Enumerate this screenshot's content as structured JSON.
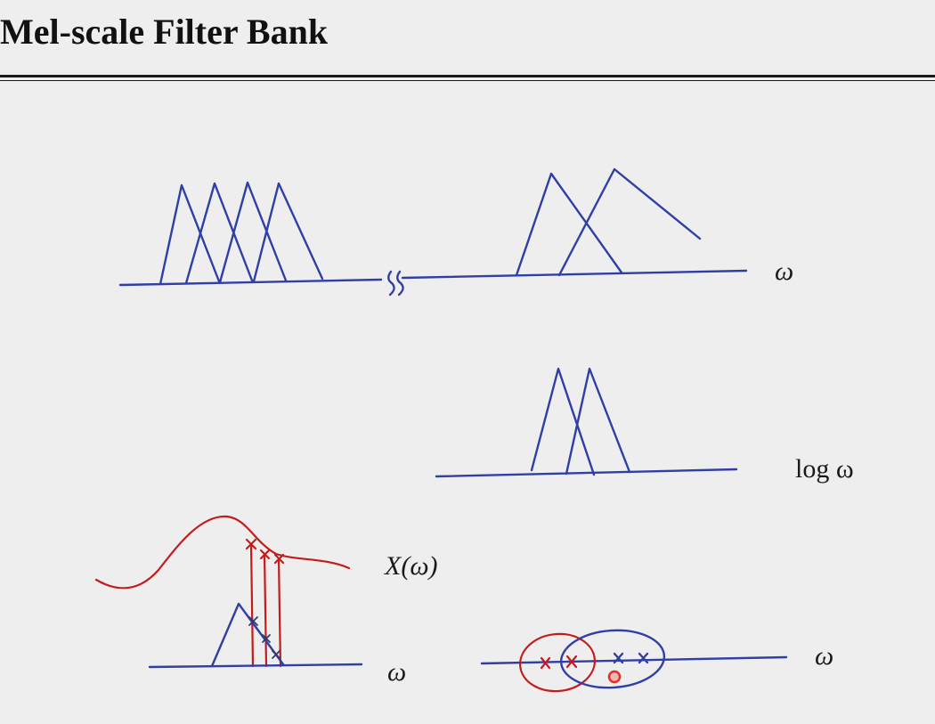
{
  "slide": {
    "title": "Mel-scale Filter Bank"
  },
  "labels": {
    "omega_top": "ω",
    "log_omega": "log ω",
    "x_of_omega": "X(ω)",
    "omega_bottom_left": "ω",
    "omega_bottom_right": "ω"
  },
  "colors": {
    "background": "#eeeeee",
    "pen_blue": "#2f3fa6",
    "pen_red": "#c41c1c",
    "pointer_red": "#e0302a"
  }
}
